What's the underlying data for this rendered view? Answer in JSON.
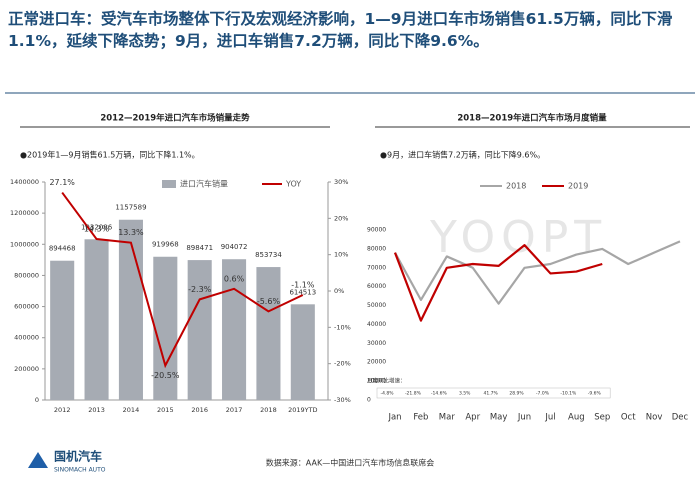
{
  "header": {
    "title": "正常进口车：受汽车市场整体下行及宏观经济影响，1—9月进口车市场销售61.5万辆，同比下滑1.1%，延续下降态势；9月，进口车销售7.2万辆，同比下降9.6%。"
  },
  "chart_data": [
    {
      "type": "bar",
      "title": "2012—2019年进口汽车市场销量走势",
      "subtitle": "●2019年1—9月销售61.5万辆，同比下降1.1%。",
      "categories": [
        "2012",
        "2013",
        "2014",
        "2015",
        "2016",
        "2017",
        "2018",
        "2019YTD"
      ],
      "series": [
        {
          "name": "进口汽车销量",
          "color": "#a6abb3",
          "values": [
            894468,
            1032086,
            1157589,
            919968,
            898471,
            904072,
            853734,
            614513
          ]
        },
        {
          "name": "YOY",
          "color": "#c00000",
          "axis": "y2",
          "type": "line",
          "values": [
            27.1,
            14.3,
            13.3,
            -20.5,
            -2.3,
            0.6,
            -5.6,
            -1.1
          ],
          "value_labels": [
            "27.1%",
            "14.3%",
            "13.3%",
            "-20.5%",
            "-2.3%",
            "0.6%",
            "-5.6%",
            "-1.1%"
          ]
        }
      ],
      "ylim": [
        0,
        1400000
      ],
      "yticks": [
        0,
        200000,
        400000,
        600000,
        800000,
        1000000,
        1200000,
        1400000
      ],
      "y2lim": [
        -30,
        30
      ],
      "y2ticks": [
        {
          "value": -30,
          "label": "-30%"
        },
        {
          "value": -20,
          "label": "-20%"
        },
        {
          "value": -10,
          "label": "-10%"
        },
        {
          "value": 0,
          "label": "0%"
        },
        {
          "value": 10,
          "label": "10%"
        },
        {
          "value": 20,
          "label": "20%"
        },
        {
          "value": 30,
          "label": "30%"
        }
      ],
      "legend": "top"
    },
    {
      "type": "line",
      "title": "2018—2019年进口汽车市场月度销量",
      "subtitle": "●9月，进口车销售7.2万辆，同比下降9.6%。",
      "categories": [
        "Jan",
        "Feb",
        "Mar",
        "Apr",
        "May",
        "Jun",
        "Jul",
        "Aug",
        "Sep",
        "Oct",
        "Nov",
        "Dec"
      ],
      "series": [
        {
          "name": "2018",
          "color": "#a6a6a6",
          "values": [
            78000,
            53000,
            76000,
            70000,
            51000,
            70000,
            72000,
            77000,
            80000,
            72000,
            78000,
            84000
          ]
        },
        {
          "name": "2019",
          "color": "#c00000",
          "values": [
            78000,
            42000,
            70000,
            72000,
            71000,
            82000,
            67000,
            68000,
            72000,
            null,
            null,
            null
          ]
        }
      ],
      "ylim": [
        0,
        90000
      ],
      "yticks": [
        0,
        10000,
        20000,
        30000,
        40000,
        50000,
        60000,
        70000,
        80000,
        90000
      ],
      "legend": "top",
      "growth": {
        "label": "月度同比增速：",
        "values": [
          "-4.8%",
          "-21.8%",
          "-14.6%",
          "3.5%",
          "41.7%",
          "28.9%",
          "-7.0%",
          "-10.1%",
          "-9.6%"
        ]
      }
    }
  ],
  "watermark": "YOOPT",
  "footer": {
    "source": "数据来源：AAK—中国进口汽车市场信息联席会",
    "logo": "国机汽车",
    "logo_en": "SINOMACH AUTO"
  }
}
